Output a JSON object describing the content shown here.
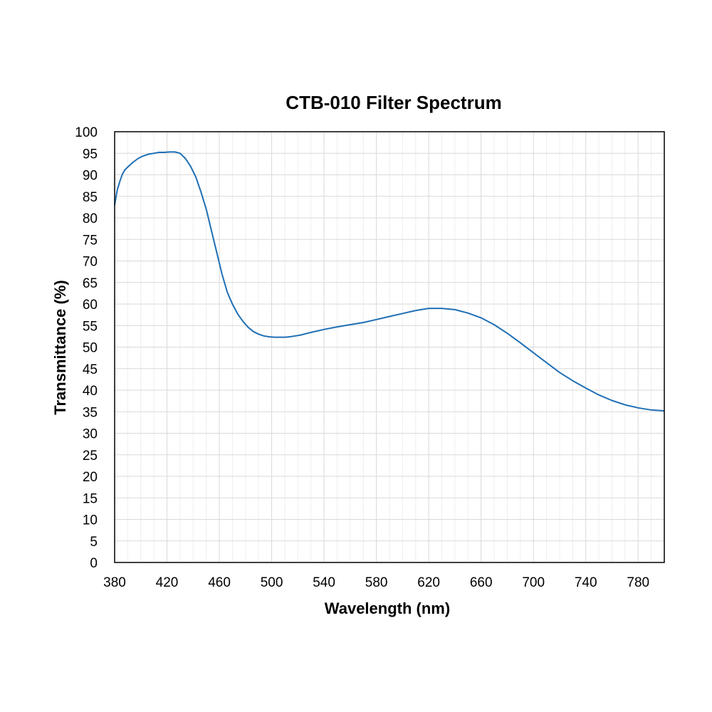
{
  "chart_data": {
    "type": "line",
    "title": "CTB-010 Filter Spectrum",
    "xlabel": "Wavelength (nm)",
    "ylabel": "Transmittance (%)",
    "xlim": [
      380,
      800
    ],
    "ylim": [
      0,
      100
    ],
    "xticks": [
      380,
      420,
      460,
      500,
      540,
      580,
      620,
      660,
      700,
      740,
      780
    ],
    "yticks": [
      0,
      5,
      10,
      15,
      20,
      25,
      30,
      35,
      40,
      45,
      50,
      55,
      60,
      65,
      70,
      75,
      80,
      85,
      90,
      95,
      100
    ],
    "xtick_labels": [
      "380",
      "420",
      "460",
      "500",
      "540",
      "580",
      "620",
      "660",
      "700",
      "740",
      "780"
    ],
    "ytick_labels": [
      "0",
      "5",
      "10",
      "15",
      "20",
      "25",
      "30",
      "35",
      "40",
      "45",
      "50",
      "55",
      "60",
      "65",
      "70",
      "75",
      "80",
      "85",
      "90",
      "95",
      "100"
    ],
    "grid": true,
    "legend": "none",
    "series": [
      {
        "color": "#1f6fb5",
        "x": [
          380,
          382,
          384,
          386,
          388,
          390,
          394,
          398,
          402,
          406,
          410,
          414,
          418,
          422,
          426,
          430,
          434,
          438,
          442,
          446,
          450,
          454,
          458,
          462,
          466,
          470,
          474,
          478,
          482,
          486,
          490,
          494,
          498,
          502,
          506,
          510,
          514,
          518,
          522,
          526,
          530,
          540,
          550,
          560,
          570,
          580,
          590,
          600,
          610,
          620,
          630,
          640,
          650,
          660,
          670,
          680,
          690,
          700,
          710,
          720,
          730,
          740,
          750,
          760,
          770,
          780,
          790,
          800
        ],
        "y": [
          83,
          86.5,
          88.5,
          90.2,
          91.2,
          91.8,
          92.9,
          93.8,
          94.4,
          94.8,
          95.0,
          95.2,
          95.2,
          95.3,
          95.3,
          95.0,
          93.8,
          92.0,
          89.5,
          86.0,
          82.0,
          77.0,
          72.0,
          67.0,
          62.8,
          60.0,
          57.7,
          56.0,
          54.6,
          53.6,
          53.0,
          52.6,
          52.4,
          52.3,
          52.3,
          52.3,
          52.4,
          52.6,
          52.8,
          53.1,
          53.4,
          54.1,
          54.7,
          55.2,
          55.7,
          56.4,
          57.1,
          57.8,
          58.5,
          59.0,
          59.0,
          58.7,
          57.9,
          56.8,
          55.2,
          53.2,
          51.0,
          48.7,
          46.4,
          44.1,
          42.2,
          40.5,
          38.9,
          37.6,
          36.6,
          35.9,
          35.4,
          35.2
        ]
      }
    ]
  }
}
